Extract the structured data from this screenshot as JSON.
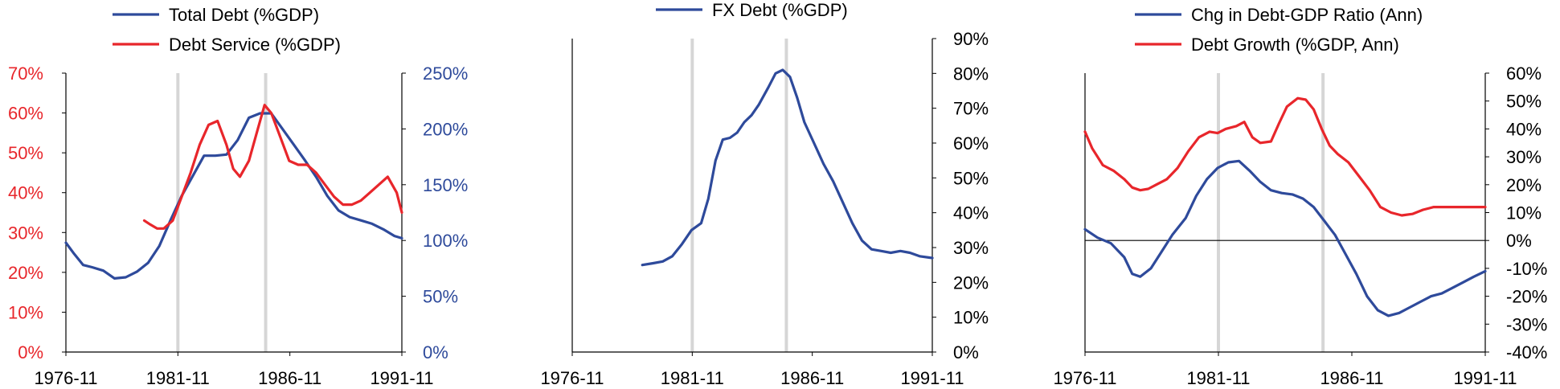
{
  "colors": {
    "blue": "#2e4a9b",
    "red": "#e8262b",
    "axis": "#000000",
    "vline": "#d6d6d6"
  },
  "chart_data": [
    {
      "type": "line",
      "x_ticks": [
        "1976-11",
        "1981-11",
        "1986-11",
        "1991-11"
      ],
      "xlim": [
        1976.83,
        1991.83
      ],
      "vlines": [
        1981.83,
        1985.75
      ],
      "left_axis": {
        "ticks": [
          "0%",
          "10%",
          "20%",
          "30%",
          "40%",
          "50%",
          "60%",
          "70%"
        ],
        "lim": [
          0,
          70
        ],
        "color": "red"
      },
      "right_axis": {
        "ticks": [
          "0%",
          "50%",
          "100%",
          "150%",
          "200%",
          "250%"
        ],
        "lim": [
          0,
          250
        ],
        "color": "blue"
      },
      "legend": [
        "Total Debt (%GDP)",
        "Debt Service (%GDP)"
      ],
      "series": [
        {
          "name": "Total Debt (%GDP)",
          "color": "blue",
          "axis": "right",
          "x": [
            1976.83,
            1977.2,
            1977.6,
            1978.0,
            1978.5,
            1979.0,
            1979.5,
            1980.0,
            1980.5,
            1981.0,
            1981.5,
            1982.0,
            1982.5,
            1983.0,
            1983.5,
            1984.0,
            1984.5,
            1985.0,
            1985.5,
            1986.0,
            1986.5,
            1987.0,
            1987.5,
            1988.0,
            1988.5,
            1989.0,
            1989.5,
            1990.0,
            1990.5,
            1991.0,
            1991.5,
            1991.83
          ],
          "y": [
            98,
            88,
            78,
            76,
            73,
            66,
            67,
            72,
            80,
            95,
            118,
            140,
            158,
            176,
            176,
            177,
            190,
            210,
            214,
            214,
            200,
            186,
            172,
            157,
            140,
            127,
            121,
            118,
            115,
            110,
            104,
            102
          ]
        },
        {
          "name": "Debt Service (%GDP)",
          "color": "red",
          "axis": "left",
          "x": [
            1980.33,
            1980.6,
            1980.9,
            1981.2,
            1981.6,
            1982.0,
            1982.4,
            1982.8,
            1983.2,
            1983.6,
            1984.0,
            1984.3,
            1984.6,
            1985.0,
            1985.4,
            1985.7,
            1986.0,
            1986.4,
            1986.8,
            1987.2,
            1987.6,
            1988.0,
            1988.4,
            1988.8,
            1989.2,
            1989.6,
            1990.0,
            1990.4,
            1990.8,
            1991.2,
            1991.6,
            1991.83
          ],
          "y": [
            33,
            32,
            31,
            31,
            33,
            39,
            45,
            52,
            57,
            58,
            52,
            46,
            44,
            48,
            56,
            62,
            60,
            54,
            48,
            47,
            47,
            45,
            42,
            39,
            37,
            37,
            38,
            40,
            42,
            44,
            40,
            35
          ]
        }
      ]
    },
    {
      "type": "line",
      "x_ticks": [
        "1976-11",
        "1981-11",
        "1986-11",
        "1991-11"
      ],
      "xlim": [
        1976.83,
        1991.83
      ],
      "vlines": [
        1981.83,
        1985.75
      ],
      "right_axis": {
        "ticks": [
          "0%",
          "10%",
          "20%",
          "30%",
          "40%",
          "50%",
          "60%",
          "70%",
          "80%",
          "90%"
        ],
        "lim": [
          0,
          90
        ],
        "color": "black"
      },
      "legend": [
        "FX Debt (%GDP)"
      ],
      "series": [
        {
          "name": "FX Debt (%GDP)",
          "color": "blue",
          "axis": "right",
          "x": [
            1979.75,
            1980.2,
            1980.6,
            1981.0,
            1981.4,
            1981.8,
            1982.2,
            1982.5,
            1982.8,
            1983.1,
            1983.4,
            1983.7,
            1984.0,
            1984.3,
            1984.6,
            1985.0,
            1985.3,
            1985.6,
            1985.9,
            1986.2,
            1986.5,
            1986.9,
            1987.3,
            1987.7,
            1988.1,
            1988.5,
            1988.9,
            1989.3,
            1989.7,
            1990.1,
            1990.5,
            1990.9,
            1991.3,
            1991.83
          ],
          "y": [
            25,
            25.5,
            26,
            27.5,
            31,
            35,
            37,
            44,
            55,
            61,
            61.5,
            63,
            66,
            68,
            71,
            76,
            80,
            81,
            79,
            73,
            66,
            60,
            54,
            49,
            43,
            37,
            32,
            29.5,
            29,
            28.5,
            29,
            28.5,
            27.5,
            27
          ]
        }
      ]
    },
    {
      "type": "line",
      "x_ticks": [
        "1976-11",
        "1981-11",
        "1986-11",
        "1991-11"
      ],
      "xlim": [
        1976.83,
        1991.83
      ],
      "vlines": [
        1981.83,
        1985.75
      ],
      "zero_line": true,
      "right_axis": {
        "ticks": [
          "-40%",
          "-30%",
          "-20%",
          "-10%",
          "0%",
          "10%",
          "20%",
          "30%",
          "40%",
          "50%",
          "60%"
        ],
        "lim": [
          -40,
          60
        ],
        "color": "black"
      },
      "legend": [
        "Chg in Debt-GDP Ratio (Ann)",
        "Debt Growth (%GDP, Ann)"
      ],
      "series": [
        {
          "name": "Chg in Debt-GDP Ratio (Ann)",
          "color": "blue",
          "axis": "right",
          "x": [
            1976.83,
            1977.3,
            1977.8,
            1978.3,
            1978.6,
            1978.9,
            1979.3,
            1979.7,
            1980.1,
            1980.6,
            1981.0,
            1981.4,
            1981.8,
            1982.2,
            1982.6,
            1983.0,
            1983.4,
            1983.8,
            1984.2,
            1984.6,
            1985.0,
            1985.4,
            1985.8,
            1986.2,
            1986.6,
            1987.0,
            1987.4,
            1987.8,
            1988.2,
            1988.6,
            1989.0,
            1989.4,
            1989.8,
            1990.2,
            1990.6,
            1991.0,
            1991.4,
            1991.83
          ],
          "y": [
            4,
            1,
            -1,
            -6,
            -12,
            -13,
            -10,
            -4,
            2,
            8,
            16,
            22,
            26,
            28,
            28.5,
            25,
            21,
            18,
            17,
            16.5,
            15,
            12,
            7,
            2,
            -5,
            -12,
            -20,
            -25,
            -27,
            -26,
            -24,
            -22,
            -20,
            -19,
            -17,
            -15,
            -13,
            -11
          ]
        },
        {
          "name": "Debt Growth (%GDP, Ann)",
          "color": "red",
          "axis": "right",
          "x": [
            1976.83,
            1977.1,
            1977.5,
            1977.9,
            1978.3,
            1978.6,
            1978.9,
            1979.2,
            1979.5,
            1979.9,
            1980.3,
            1980.7,
            1981.1,
            1981.5,
            1981.8,
            1982.1,
            1982.5,
            1982.8,
            1983.1,
            1983.4,
            1983.8,
            1984.1,
            1984.4,
            1984.8,
            1985.1,
            1985.4,
            1985.7,
            1986.0,
            1986.3,
            1986.7,
            1987.1,
            1987.5,
            1987.9,
            1988.3,
            1988.7,
            1989.1,
            1989.5,
            1989.9,
            1990.3,
            1990.7,
            1991.1,
            1991.5,
            1991.83
          ],
          "y": [
            39,
            33,
            27,
            25,
            22,
            19,
            18,
            18.5,
            20,
            22,
            26,
            32,
            37,
            39,
            38.5,
            40,
            41,
            42.5,
            37,
            35,
            35.5,
            42,
            48,
            51,
            50.5,
            47,
            40,
            34,
            31,
            28,
            23,
            18,
            12,
            10,
            9,
            9.5,
            11,
            12,
            12,
            12,
            12,
            12,
            12
          ]
        }
      ]
    }
  ]
}
